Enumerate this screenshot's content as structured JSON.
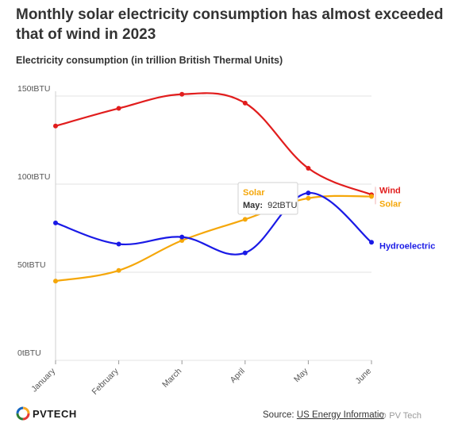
{
  "title": "Monthly solar electricity consumption has almost exceeded that of wind in 2023",
  "subtitle": "Electricity consumption (in trillion British Thermal Units)",
  "source_prefix": "Source: ",
  "source_link": "US Energy Informatio",
  "watermark": "⊙ PV Tech",
  "logo_text": "PVTECH",
  "tooltip": {
    "series": "Solar",
    "label": "May:",
    "value": "92tBTU"
  },
  "chart_data": {
    "type": "line",
    "title": "Monthly solar electricity consumption has almost exceeded that of wind in 2023",
    "ylabel": "Electricity consumption (in trillion British Thermal Units)",
    "xlabel": "",
    "categories": [
      "January",
      "February",
      "March",
      "April",
      "May",
      "June"
    ],
    "ylim": [
      0,
      150
    ],
    "yticks": [
      {
        "value": 0,
        "label": "0tBTU"
      },
      {
        "value": 50,
        "label": "50tBTU"
      },
      {
        "value": 100,
        "label": "100tBTU"
      },
      {
        "value": 150,
        "label": "150tBTU"
      }
    ],
    "grid": true,
    "legend": "inline labels at line ends",
    "series": [
      {
        "name": "Wind",
        "color": "#e11d1d",
        "values": [
          133,
          143,
          151,
          146,
          109,
          94
        ]
      },
      {
        "name": "Solar",
        "color": "#f5a70a",
        "values": [
          45,
          51,
          68,
          80,
          92,
          93
        ]
      },
      {
        "name": "Hydroelectric",
        "color": "#1a1ae6",
        "values": [
          78,
          66,
          70,
          61,
          95,
          67
        ]
      }
    ]
  }
}
